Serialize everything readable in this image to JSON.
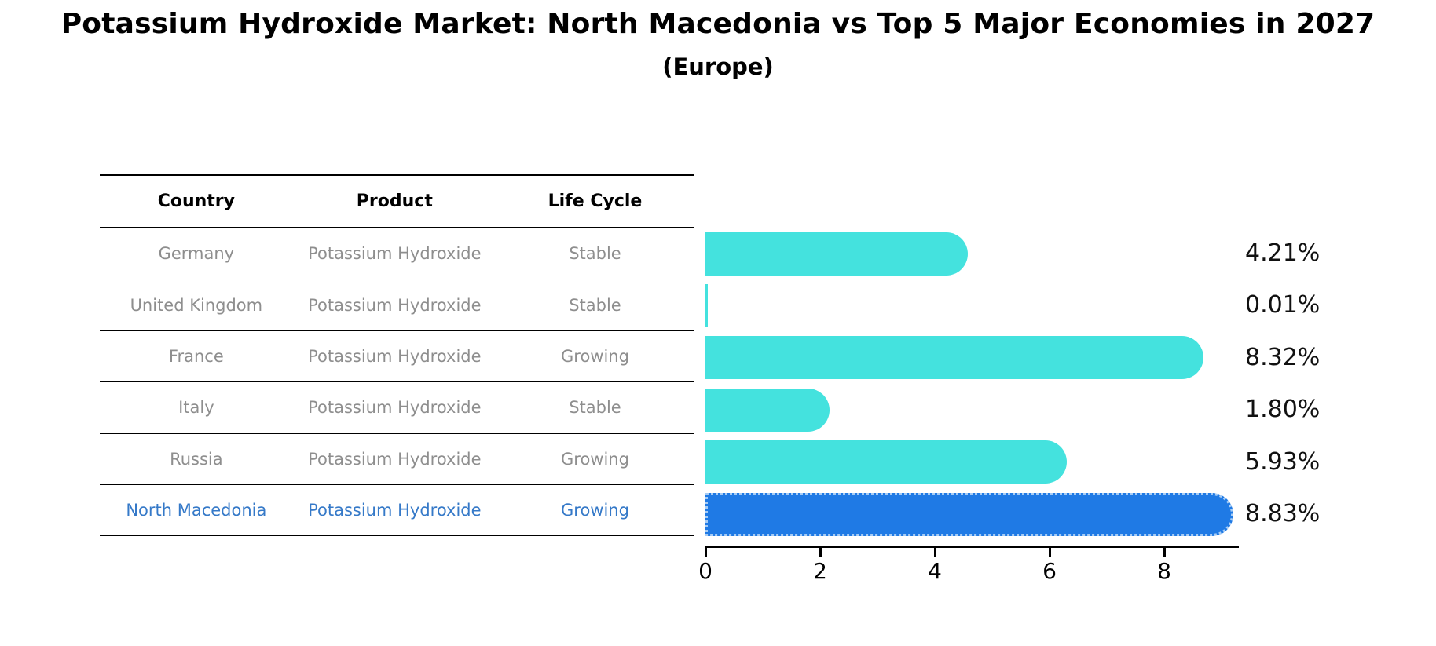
{
  "chart_data": {
    "type": "bar",
    "orientation": "horizontal",
    "title": "Potassium Hydroxide Market: North Macedonia vs Top 5 Major Economies in 2027",
    "subtitle": "(Europe)",
    "categories": [
      "Germany",
      "United Kingdom",
      "France",
      "Italy",
      "Russia",
      "North Macedonia"
    ],
    "values": [
      4.21,
      0.01,
      8.32,
      1.8,
      5.93,
      8.83
    ],
    "value_labels": [
      "4.21%",
      "0.01%",
      "8.32%",
      "1.80%",
      "5.93%",
      "8.83%"
    ],
    "x_ticks": [
      0,
      2,
      4,
      6,
      8
    ],
    "x_tick_labels": [
      "0",
      "2",
      "4",
      "6",
      "8"
    ],
    "xlim": [
      0,
      9.3
    ],
    "grid": false,
    "legend": false,
    "highlight_index": 5,
    "bar_color": "#44E2DE",
    "highlight_bar_color": "#1F7AE5",
    "highlight_border_color": "#A6CCF5"
  },
  "table": {
    "headers": [
      "Country",
      "Product",
      "Life Cycle"
    ],
    "rows": [
      {
        "country": "Germany",
        "product": "Potassium Hydroxide",
        "life_cycle": "Stable"
      },
      {
        "country": "United Kingdom",
        "product": "Potassium Hydroxide",
        "life_cycle": "Stable"
      },
      {
        "country": "France",
        "product": "Potassium Hydroxide",
        "life_cycle": "Growing"
      },
      {
        "country": "Italy",
        "product": "Potassium Hydroxide",
        "life_cycle": "Stable"
      },
      {
        "country": "Russia",
        "product": "Potassium Hydroxide",
        "life_cycle": "Growing"
      },
      {
        "country": "North Macedonia",
        "product": "Potassium Hydroxide",
        "life_cycle": "Growing"
      }
    ]
  },
  "colors": {
    "table_text": "#8E8E8E",
    "table_header_text": "#000000",
    "highlight_row_text": "#3579C8",
    "axis_text": "#000000"
  }
}
